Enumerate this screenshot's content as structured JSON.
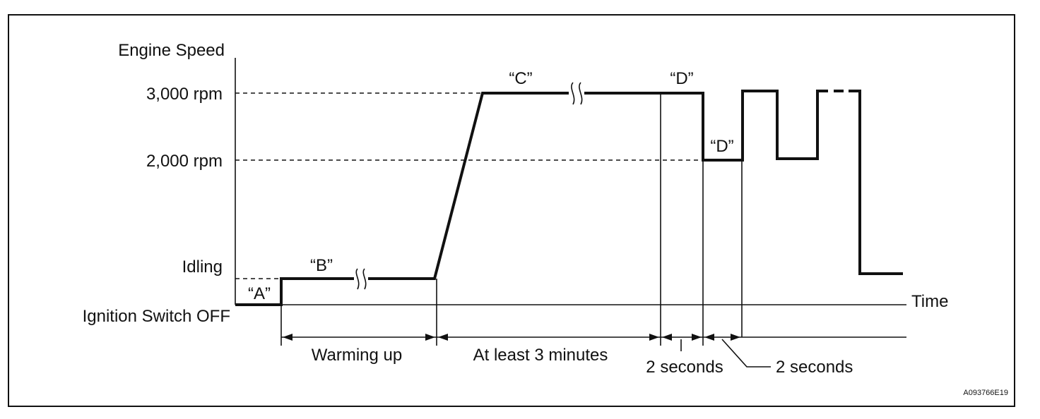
{
  "axes": {
    "y_title": "Engine Speed",
    "x_title": "Time"
  },
  "levels": {
    "rpm_3000": "3,000 rpm",
    "rpm_2000": "2,000 rpm",
    "idling": "Idling",
    "ignition_off": "Ignition Switch OFF"
  },
  "phases": {
    "a": "“A”",
    "b": "“B”",
    "c": "“C”",
    "d_high": "“D”",
    "d_low": "“D”"
  },
  "durations": {
    "warming_up": "Warming up",
    "at_least_3_min": "At least 3 minutes",
    "two_seconds_1": "2 seconds",
    "two_seconds_2": "2 seconds"
  },
  "figure_code": "A093766E19"
}
